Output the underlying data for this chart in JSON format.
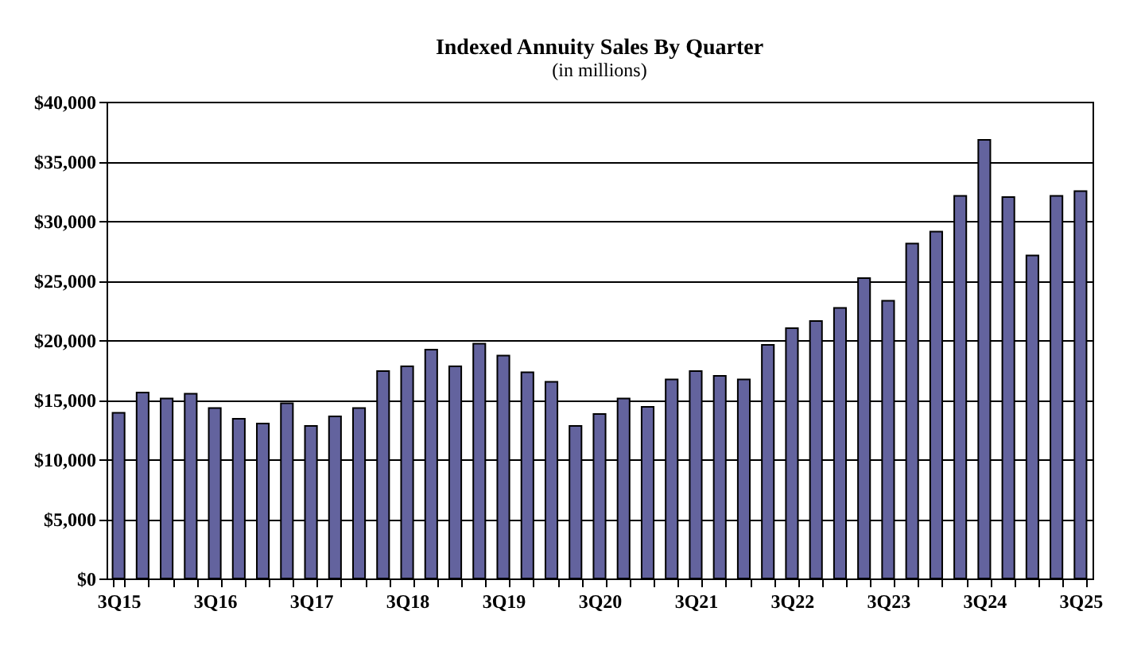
{
  "chart_data": {
    "type": "bar",
    "title": "Indexed Annuity Sales By Quarter",
    "subtitle": "(in millions)",
    "categories": [
      "3Q15",
      null,
      null,
      null,
      "3Q16",
      null,
      null,
      null,
      "3Q17",
      null,
      null,
      null,
      "3Q18",
      null,
      null,
      null,
      "3Q19",
      null,
      null,
      null,
      "3Q20",
      null,
      null,
      null,
      "3Q21",
      null,
      null,
      null,
      "3Q22",
      null,
      null,
      null,
      "3Q23",
      null,
      null,
      null,
      "3Q24",
      null,
      null,
      null,
      "3Q25"
    ],
    "values": [
      13900,
      15600,
      15100,
      15500,
      14300,
      13400,
      13000,
      14700,
      12800,
      13600,
      14300,
      17400,
      17800,
      19200,
      17800,
      19700,
      18700,
      17300,
      16500,
      12800,
      13800,
      15100,
      14400,
      16700,
      17400,
      17000,
      16700,
      19600,
      21000,
      21600,
      22700,
      25200,
      23300,
      28100,
      29100,
      32100,
      36800,
      32000,
      27100,
      32100,
      32500
    ],
    "color": "#63639e",
    "ylim": [
      0,
      40000
    ],
    "yticks": [
      {
        "value": 0,
        "label": "$0"
      },
      {
        "value": 5000,
        "label": "$5,000"
      },
      {
        "value": 10000,
        "label": "$10,000"
      },
      {
        "value": 15000,
        "label": "$15,000"
      },
      {
        "value": 20000,
        "label": "$20,000"
      },
      {
        "value": 25000,
        "label": "$25,000"
      },
      {
        "value": 30000,
        "label": "$30,000"
      },
      {
        "value": 35000,
        "label": "$35,000"
      },
      {
        "value": 40000,
        "label": "$40,000"
      }
    ],
    "grid": "y"
  }
}
